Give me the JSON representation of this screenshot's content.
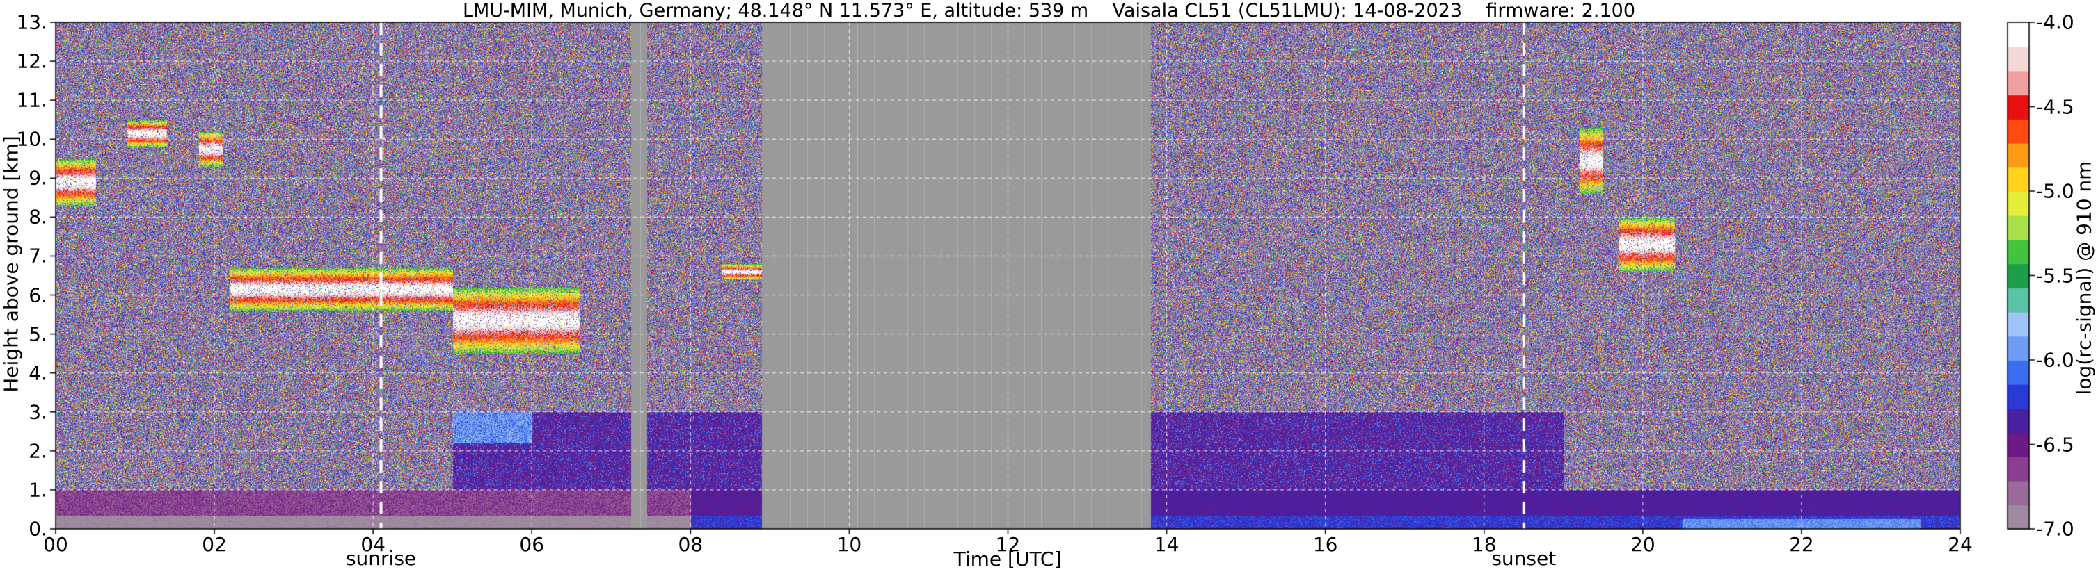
{
  "chart_data": {
    "type": "heatmap",
    "title": "LMU-MIM, Munich, Germany; 48.148° N 11.573° E, altitude: 539 m    Vaisala CL51 (CL51LMU): 14-08-2023    firmware: 2.100",
    "xlabel": "Time [UTC]",
    "ylabel": "Height above ground [km]",
    "colorbar_label": "log(rc-signal) @ 910 nm",
    "xlim": [
      0,
      24
    ],
    "ylim": [
      0,
      13
    ],
    "clim": [
      -7.0,
      -4.0
    ],
    "x_ticks": [
      "00",
      "02",
      "04",
      "06",
      "08",
      "10",
      "12",
      "14",
      "16",
      "18",
      "20",
      "22",
      "24"
    ],
    "y_ticks": [
      "0.",
      "1.",
      "2.",
      "3.",
      "4.",
      "5.",
      "6.",
      "7.",
      "8.",
      "9.",
      "10.",
      "11.",
      "12.",
      "13."
    ],
    "colorbar_ticks": [
      "-4.0",
      "-4.5",
      "-5.0",
      "-5.5",
      "-6.0",
      "-6.5",
      "-7.0"
    ],
    "grid": true,
    "events": [
      {
        "label": "sunrise",
        "time": 4.1
      },
      {
        "label": "sunset",
        "time": 18.5
      }
    ],
    "missing_data_periods": [
      [
        7.25,
        7.45
      ],
      [
        8.9,
        13.8
      ]
    ],
    "cloud_layers": [
      {
        "start": 0.0,
        "end": 0.5,
        "base_km": 8.3,
        "top_km": 9.5
      },
      {
        "start": 0.9,
        "end": 1.4,
        "base_km": 9.8,
        "top_km": 10.5
      },
      {
        "start": 1.8,
        "end": 2.1,
        "base_km": 9.3,
        "top_km": 10.2
      },
      {
        "start": 2.2,
        "end": 5.0,
        "base_km": 5.6,
        "top_km": 6.7
      },
      {
        "start": 5.0,
        "end": 6.6,
        "base_km": 4.5,
        "top_km": 6.2
      },
      {
        "start": 8.4,
        "end": 8.9,
        "base_km": 6.4,
        "top_km": 6.8
      },
      {
        "start": 19.2,
        "end": 19.5,
        "base_km": 8.6,
        "top_km": 10.3
      },
      {
        "start": 19.7,
        "end": 20.4,
        "base_km": 6.6,
        "top_km": 8.0
      }
    ],
    "boundary_layer_top_km": {
      "night": 1.0,
      "day": 3.0
    }
  },
  "colors": {
    "missing": "#9a9a9a",
    "colormap": [
      "#a08aa0",
      "#9a6b9a",
      "#8a3f8f",
      "#6e1a86",
      "#4a1fa0",
      "#2a3ad6",
      "#3c6cf0",
      "#6f9cf4",
      "#9fc3f6",
      "#58c3a6",
      "#1f9e4a",
      "#43c43f",
      "#a8e04a",
      "#e6ee3a",
      "#ffd21c",
      "#ff9a14",
      "#ff4a12",
      "#e81010",
      "#f0a0a0",
      "#f3d8d8",
      "#ffffff"
    ]
  }
}
